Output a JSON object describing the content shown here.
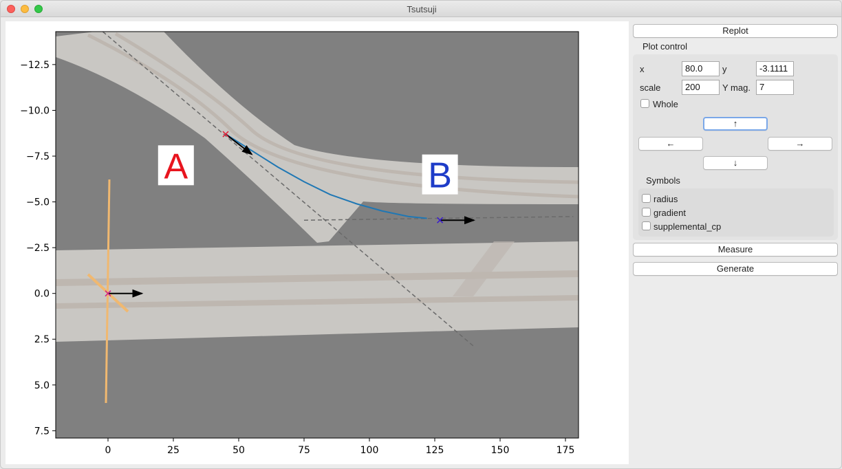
{
  "window": {
    "title": "Tsutsuji"
  },
  "chart_data": {
    "type": "line",
    "x_ticks": [
      0,
      25,
      50,
      75,
      100,
      125,
      150,
      175
    ],
    "y_ticks": [
      -12.5,
      -10.0,
      -7.5,
      -5.0,
      -2.5,
      0.0,
      2.5,
      5.0,
      7.5
    ],
    "y_tick_labels": [
      "−12.5",
      "−10.0",
      "−7.5",
      "−5.0",
      "−2.5",
      "0.0",
      "2.5",
      "5.0",
      "7.5"
    ],
    "xlim": [
      -20,
      180
    ],
    "ylim": [
      -14.3,
      7.9
    ],
    "y_inverted": true,
    "grid": false,
    "annotations": [
      {
        "label": "A",
        "color": "#e8141e",
        "x": 26,
        "y": -7.0
      },
      {
        "label": "B",
        "color": "#1e3cc8",
        "x": 127,
        "y": -6.5
      }
    ],
    "series": [
      {
        "type": "curve",
        "color": "#1f77b4",
        "x": [
          45,
          55,
          65,
          75,
          85,
          95,
          105,
          115,
          122
        ],
        "y": [
          -8.7,
          -7.8,
          -6.9,
          -6.1,
          -5.4,
          -4.9,
          -4.5,
          -4.2,
          -4.1
        ]
      },
      {
        "type": "dashed-line",
        "color": "#707070",
        "x": [
          -2,
          140
        ],
        "y": [
          -14.3,
          2.9
        ]
      },
      {
        "type": "dashed-line",
        "color": "#707070",
        "x": [
          75,
          178
        ],
        "y": [
          -4.0,
          -4.2
        ]
      }
    ],
    "markers": [
      {
        "x": 45,
        "y": -8.7,
        "color": "#e0203a",
        "symbol": "x"
      },
      {
        "x": 127,
        "y": -4.0,
        "color": "#3a1ad0",
        "symbol": "x"
      },
      {
        "x": 0,
        "y": 0.0,
        "color": "#cc2288",
        "symbol": "x"
      }
    ],
    "arrows": [
      {
        "x0": 45,
        "y0": -8.7,
        "x1": 55,
        "y1": -7.6
      },
      {
        "x0": 127,
        "y0": -4.0,
        "x1": 140,
        "y1": -4.0
      },
      {
        "x0": 0,
        "y0": 0.0,
        "x1": 13,
        "y1": 0.0
      }
    ],
    "background_color": "#808080"
  },
  "panel": {
    "replot_label": "Replot",
    "plot_control_label": "Plot control",
    "x_label": "x",
    "x_value": "80.0",
    "y_label": "y",
    "y_value": "-3.1111",
    "scale_label": "scale",
    "scale_value": "200",
    "ymag_label": "Y mag.",
    "ymag_value": "7",
    "whole_label": "Whole",
    "up_label": "↑",
    "left_label": "←",
    "right_label": "→",
    "down_label": "↓",
    "symbols_label": "Symbols",
    "radius_label": "radius",
    "gradient_label": "gradient",
    "supplemental_label": "supplemental_cp",
    "measure_label": "Measure",
    "generate_label": "Generate"
  }
}
